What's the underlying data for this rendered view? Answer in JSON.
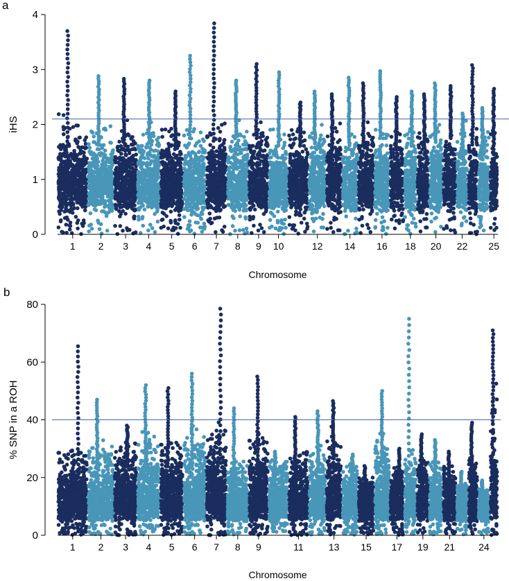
{
  "figure": {
    "panel_a_letter": "a",
    "panel_b_letter": "b"
  },
  "chart_data": [
    {
      "panel": "a",
      "type": "scatter",
      "subtype": "manhattan",
      "xlabel": "Chromosome",
      "ylabel": "iHS",
      "ylim": [
        0,
        4
      ],
      "y_ticks": [
        "0",
        "1",
        "2",
        "3",
        "4"
      ],
      "x_tick_labels": [
        "1",
        "2",
        "3",
        "4",
        "5",
        "6",
        "7",
        "8",
        "9",
        "10",
        "12",
        "14",
        "16",
        "18",
        "20",
        "22",
        "25"
      ],
      "threshold": 2.1,
      "grid": false,
      "colors": {
        "dark": "#1a2d5e",
        "light": "#4896b8",
        "threshold_line": "#3f63b4"
      },
      "chromosomes": [
        {
          "chr": 1,
          "typical_max": 2.3,
          "peak": 3.7
        },
        {
          "chr": 2,
          "typical_max": 2.4,
          "peak": 2.88
        },
        {
          "chr": 3,
          "typical_max": 2.4,
          "peak": 2.83
        },
        {
          "chr": 4,
          "typical_max": 2.4,
          "peak": 2.8
        },
        {
          "chr": 5,
          "typical_max": 2.3,
          "peak": 2.6
        },
        {
          "chr": 6,
          "typical_max": 2.5,
          "peak": 3.25
        },
        {
          "chr": 7,
          "typical_max": 2.5,
          "peak": 3.84
        },
        {
          "chr": 8,
          "typical_max": 2.6,
          "peak": 2.8
        },
        {
          "chr": 9,
          "typical_max": 2.5,
          "peak": 3.1
        },
        {
          "chr": 10,
          "typical_max": 2.4,
          "peak": 2.95
        },
        {
          "chr": 11,
          "typical_max": 2.3,
          "peak": 2.4
        },
        {
          "chr": 12,
          "typical_max": 2.4,
          "peak": 2.6
        },
        {
          "chr": 13,
          "typical_max": 2.2,
          "peak": 2.55
        },
        {
          "chr": 14,
          "typical_max": 2.4,
          "peak": 2.85
        },
        {
          "chr": 15,
          "typical_max": 2.3,
          "peak": 2.75
        },
        {
          "chr": 16,
          "typical_max": 2.5,
          "peak": 2.97
        },
        {
          "chr": 17,
          "typical_max": 2.2,
          "peak": 2.5
        },
        {
          "chr": 18,
          "typical_max": 2.3,
          "peak": 2.6
        },
        {
          "chr": 19,
          "typical_max": 2.3,
          "peak": 2.55
        },
        {
          "chr": 20,
          "typical_max": 2.4,
          "peak": 2.75
        },
        {
          "chr": 21,
          "typical_max": 2.5,
          "peak": 2.7
        },
        {
          "chr": 22,
          "typical_max": 2.1,
          "peak": 2.2
        },
        {
          "chr": 23,
          "typical_max": 2.4,
          "peak": 3.08
        },
        {
          "chr": 24,
          "typical_max": 2.1,
          "peak": 2.3
        },
        {
          "chr": 25,
          "typical_max": 2.3,
          "peak": 2.65
        }
      ]
    },
    {
      "panel": "b",
      "type": "scatter",
      "subtype": "manhattan",
      "xlabel": "Chromosome",
      "ylabel": "% SNP in a ROH",
      "ylim": [
        0,
        80
      ],
      "y_ticks": [
        "0",
        "20",
        "40",
        "60",
        "80"
      ],
      "x_tick_labels": [
        "1",
        "2",
        "3",
        "4",
        "5",
        "6",
        "7",
        "8",
        "9",
        "11",
        "13",
        "15",
        "17",
        "19",
        "21",
        "24"
      ],
      "threshold": 40,
      "grid": false,
      "colors": {
        "dark": "#1a2d5e",
        "light": "#4896b8",
        "threshold_line": "#3f63b4"
      },
      "chromosomes": [
        {
          "chr": 1,
          "typical_max": 30,
          "peak": 65.5
        },
        {
          "chr": 2,
          "typical_max": 33,
          "peak": 47
        },
        {
          "chr": 3,
          "typical_max": 34,
          "peak": 38
        },
        {
          "chr": 4,
          "typical_max": 36,
          "peak": 52
        },
        {
          "chr": 5,
          "typical_max": 34,
          "peak": 51
        },
        {
          "chr": 6,
          "typical_max": 38,
          "peak": 56
        },
        {
          "chr": 7,
          "typical_max": 40,
          "peak": 78.5
        },
        {
          "chr": 8,
          "typical_max": 26,
          "peak": 44
        },
        {
          "chr": 9,
          "typical_max": 36,
          "peak": 55
        },
        {
          "chr": 10,
          "typical_max": 27,
          "peak": 29
        },
        {
          "chr": 11,
          "typical_max": 30,
          "peak": 41
        },
        {
          "chr": 12,
          "typical_max": 32,
          "peak": 43
        },
        {
          "chr": 13,
          "typical_max": 38,
          "peak": 46.5
        },
        {
          "chr": 14,
          "typical_max": 25,
          "peak": 28
        },
        {
          "chr": 15,
          "typical_max": 20,
          "peak": 24
        },
        {
          "chr": 16,
          "typical_max": 36,
          "peak": 50
        },
        {
          "chr": 17,
          "typical_max": 24,
          "peak": 30
        },
        {
          "chr": 18,
          "typical_max": 30,
          "peak": 75
        },
        {
          "chr": 19,
          "typical_max": 28,
          "peak": 35
        },
        {
          "chr": 20,
          "typical_max": 26,
          "peak": 33
        },
        {
          "chr": 21,
          "typical_max": 24,
          "peak": 29
        },
        {
          "chr": 22,
          "typical_max": 18,
          "peak": 22
        },
        {
          "chr": 23,
          "typical_max": 28,
          "peak": 39
        },
        {
          "chr": 24,
          "typical_max": 16,
          "peak": 19
        },
        {
          "chr": 25,
          "typical_max": 55,
          "peak": 71
        }
      ]
    }
  ]
}
